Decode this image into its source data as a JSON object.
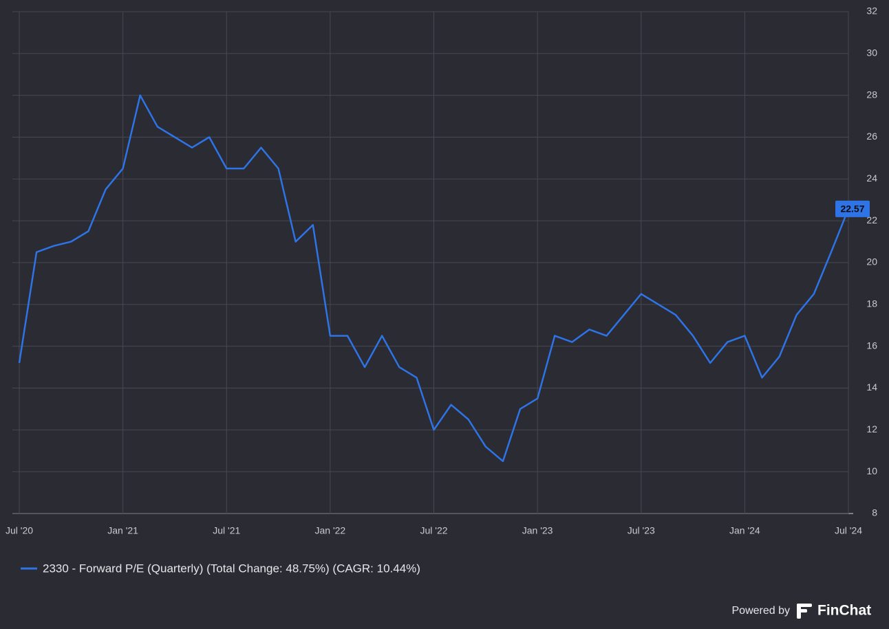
{
  "chart_data": {
    "type": "line",
    "x": [
      "2020-07",
      "2020-08",
      "2020-09",
      "2020-10",
      "2020-11",
      "2020-12",
      "2021-01",
      "2021-02",
      "2021-03",
      "2021-04",
      "2021-05",
      "2021-06",
      "2021-07",
      "2021-08",
      "2021-09",
      "2021-10",
      "2021-11",
      "2021-12",
      "2022-01",
      "2022-02",
      "2022-03",
      "2022-04",
      "2022-05",
      "2022-06",
      "2022-07",
      "2022-08",
      "2022-09",
      "2022-10",
      "2022-11",
      "2022-12",
      "2023-01",
      "2023-02",
      "2023-03",
      "2023-04",
      "2023-05",
      "2023-06",
      "2023-07",
      "2023-08",
      "2023-09",
      "2023-10",
      "2023-11",
      "2023-12",
      "2024-01",
      "2024-02",
      "2024-03",
      "2024-04",
      "2024-05",
      "2024-06",
      "2024-07"
    ],
    "series": [
      {
        "name": "2330 - Forward P/E (Quarterly) (Total Change: 48.75%) (CAGR: 10.44%)",
        "color": "#2f74e6",
        "values": [
          15.2,
          20.5,
          20.8,
          21,
          21.5,
          23.5,
          24.5,
          28,
          26.5,
          26,
          25.5,
          26,
          24.5,
          24.5,
          25.5,
          24.5,
          21,
          21.8,
          16.5,
          16.5,
          15,
          16.5,
          15,
          14.5,
          12,
          13.2,
          12.5,
          11.2,
          10.5,
          13,
          13.5,
          16.5,
          16.2,
          16.8,
          16.5,
          17.5,
          18.5,
          18,
          17.5,
          16.5,
          15.2,
          16.2,
          16.5,
          14.5,
          15.5,
          17.5,
          18.5,
          20.5,
          22.57
        ]
      }
    ],
    "last_value": 22.57,
    "xlim": [
      "2020-07",
      "2024-07"
    ],
    "xticks": [
      {
        "value": "2020-07",
        "label": "Jul '20"
      },
      {
        "value": "2021-01",
        "label": "Jan '21"
      },
      {
        "value": "2021-07",
        "label": "Jul '21"
      },
      {
        "value": "2022-01",
        "label": "Jan '22"
      },
      {
        "value": "2022-07",
        "label": "Jul '22"
      },
      {
        "value": "2023-01",
        "label": "Jan '23"
      },
      {
        "value": "2023-07",
        "label": "Jul '23"
      },
      {
        "value": "2024-01",
        "label": "Jan '24"
      },
      {
        "value": "2024-07",
        "label": "Jul '24"
      }
    ],
    "ylim": [
      8,
      32
    ],
    "yticks": [
      8,
      10,
      12,
      14,
      16,
      18,
      20,
      22,
      24,
      26,
      28,
      30,
      32
    ],
    "grid": true
  },
  "footer": {
    "powered_by": "Powered by",
    "brand": "FinChat"
  }
}
